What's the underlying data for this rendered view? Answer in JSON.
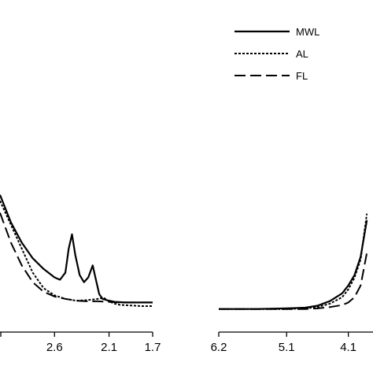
{
  "chart_data": [
    {
      "type": "line",
      "x_reversed": true,
      "xlim": [
        3.1,
        1.7
      ],
      "ylim": [
        0,
        1.0
      ],
      "xticks": [
        "2.6",
        "2.1",
        "1.7"
      ],
      "series": [
        {
          "name": "MWL",
          "style": "solid",
          "x": [
            3.1,
            3.0,
            2.9,
            2.8,
            2.7,
            2.6,
            2.55,
            2.5,
            2.47,
            2.44,
            2.41,
            2.37,
            2.33,
            2.29,
            2.25,
            2.22,
            2.19,
            2.16,
            2.12,
            2.05,
            1.95,
            1.85,
            1.75,
            1.7
          ],
          "y": [
            0.95,
            0.72,
            0.55,
            0.42,
            0.33,
            0.26,
            0.24,
            0.3,
            0.5,
            0.62,
            0.45,
            0.28,
            0.22,
            0.26,
            0.36,
            0.24,
            0.12,
            0.08,
            0.07,
            0.055,
            0.05,
            0.05,
            0.05,
            0.05
          ]
        },
        {
          "name": "AL",
          "style": "dotted",
          "x": [
            3.1,
            3.0,
            2.9,
            2.8,
            2.7,
            2.6,
            2.5,
            2.4,
            2.3,
            2.2,
            2.15,
            2.1,
            2.05,
            2.0,
            1.9,
            1.8,
            1.7
          ],
          "y": [
            0.9,
            0.7,
            0.5,
            0.3,
            0.17,
            0.11,
            0.08,
            0.065,
            0.07,
            0.08,
            0.09,
            0.06,
            0.04,
            0.03,
            0.025,
            0.02,
            0.02
          ]
        },
        {
          "name": "FL",
          "style": "dashed",
          "x": [
            3.1,
            3.0,
            2.9,
            2.8,
            2.7,
            2.6,
            2.5,
            2.4,
            2.3,
            2.2,
            2.1,
            2.0,
            1.9,
            1.8,
            1.7
          ],
          "y": [
            0.8,
            0.55,
            0.36,
            0.22,
            0.14,
            0.1,
            0.08,
            0.065,
            0.06,
            0.06,
            0.055,
            0.05,
            0.05,
            0.05,
            0.05
          ]
        }
      ]
    },
    {
      "type": "line",
      "x_reversed": true,
      "xlim": [
        6.2,
        3.7
      ],
      "ylim": [
        0,
        1.0
      ],
      "xticks": [
        "6.2",
        "5.1",
        "4.1"
      ],
      "series": [
        {
          "name": "MWL",
          "style": "solid",
          "x": [
            6.2,
            5.6,
            5.1,
            4.8,
            4.6,
            4.4,
            4.2,
            4.1,
            4.0,
            3.9,
            3.8
          ],
          "y": [
            0.02,
            0.02,
            0.025,
            0.03,
            0.045,
            0.08,
            0.14,
            0.2,
            0.28,
            0.42,
            0.7
          ]
        },
        {
          "name": "AL",
          "style": "dotted",
          "x": [
            6.2,
            5.6,
            5.1,
            4.8,
            4.6,
            4.4,
            4.2,
            4.1,
            4.0,
            3.9,
            3.8
          ],
          "y": [
            0.02,
            0.02,
            0.02,
            0.025,
            0.035,
            0.06,
            0.11,
            0.17,
            0.26,
            0.4,
            0.75
          ]
        },
        {
          "name": "FL",
          "style": "dashed",
          "x": [
            6.2,
            5.6,
            5.1,
            4.8,
            4.6,
            4.4,
            4.2,
            4.1,
            4.0,
            3.9,
            3.8
          ],
          "y": [
            0.02,
            0.02,
            0.02,
            0.02,
            0.025,
            0.035,
            0.05,
            0.07,
            0.11,
            0.2,
            0.45
          ]
        }
      ]
    }
  ],
  "legend": {
    "position": "top-right",
    "items": [
      {
        "label": "MWL",
        "style": "solid"
      },
      {
        "label": "AL",
        "style": "dotted"
      },
      {
        "label": "FL",
        "style": "dashed"
      }
    ]
  }
}
